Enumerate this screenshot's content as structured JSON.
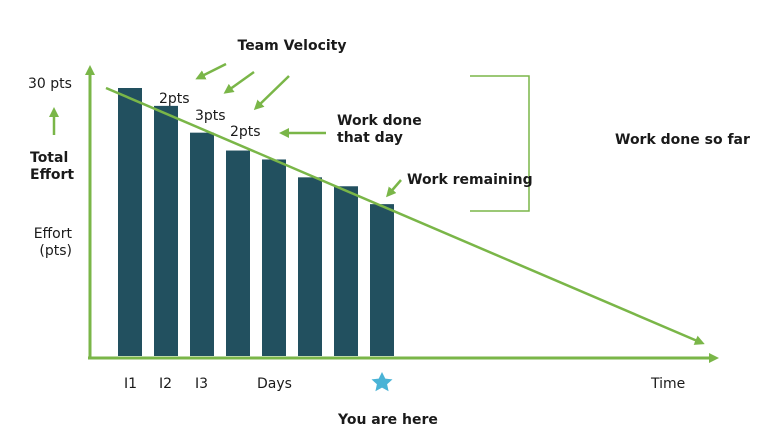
{
  "diagram": {
    "title": "Team Velocity",
    "y_top_label": "30 pts",
    "y_axis_title": "Total\nEffort",
    "y_axis_sub": "Effort\n(pts)",
    "x_labels": [
      "I1",
      "I2",
      "I3"
    ],
    "x_days_label": "Days",
    "x_time_label": "Time",
    "velocity_labels": [
      "2pts",
      "3pts",
      "2pts"
    ],
    "annotations": {
      "work_done_that_day": "Work done\nthat day",
      "work_remaining": "Work remaining",
      "work_done_so_far": "Work done so far",
      "you_are_here": "You are here"
    },
    "colors": {
      "green": "#7ab648",
      "bar": "#22505f",
      "star": "#4ab3d6"
    },
    "icons": [
      "star-icon",
      "arrow-icon"
    ]
  },
  "chart_data": {
    "type": "bar",
    "title": "Team Velocity",
    "ylabel": "Effort (pts)",
    "xlabel": "Days",
    "categories": [
      "I1",
      "I2",
      "I3",
      "",
      "",
      "",
      "",
      ""
    ],
    "values": [
      30,
      28,
      25,
      23,
      22,
      20,
      19,
      17
    ],
    "ylim": [
      0,
      30
    ]
  }
}
